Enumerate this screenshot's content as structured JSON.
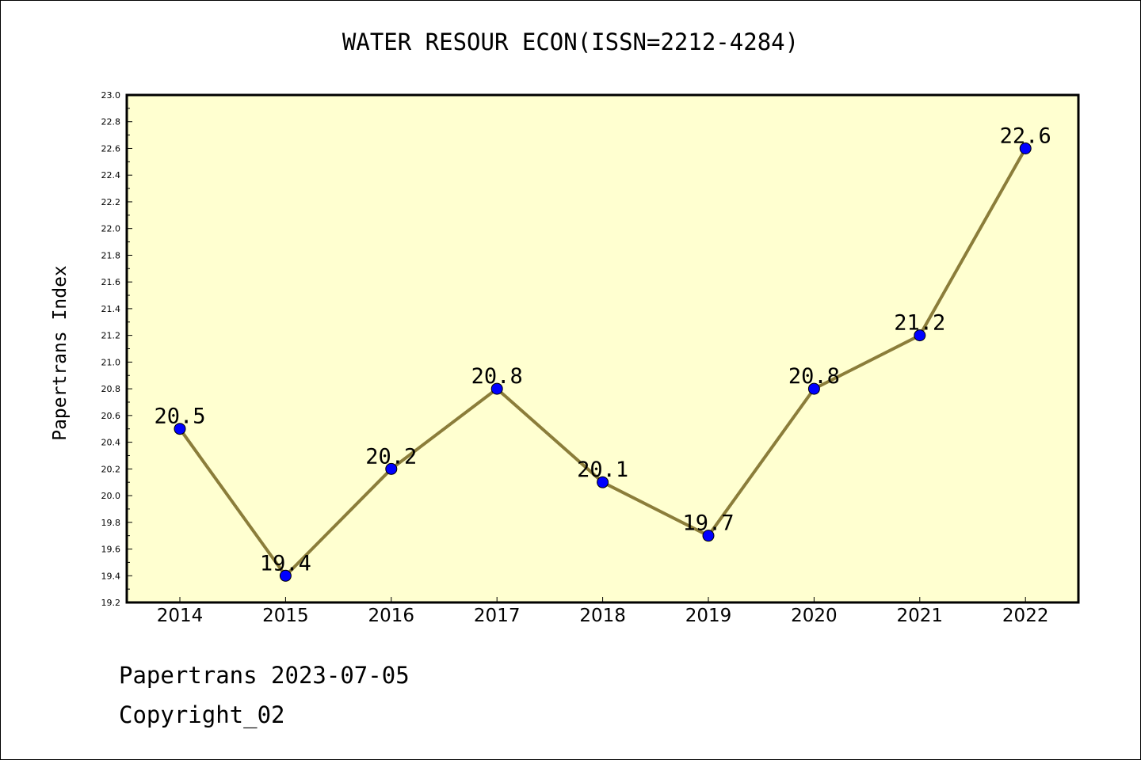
{
  "chart_data": {
    "type": "line",
    "title": "WATER RESOUR ECON(ISSN=2212-4284)",
    "xlabel": "",
    "ylabel": "Papertrans Index",
    "x": [
      "2014",
      "2015",
      "2016",
      "2017",
      "2018",
      "2019",
      "2020",
      "2021",
      "2022"
    ],
    "series": [
      {
        "values": [
          20.5,
          19.4,
          20.2,
          20.8,
          20.1,
          19.7,
          20.8,
          21.2,
          22.6
        ]
      }
    ],
    "data_labels": [
      "20.5",
      "19.4",
      "20.2",
      "20.8",
      "20.1",
      "19.7",
      "20.8",
      "21.2",
      "22.6"
    ],
    "ylim": [
      19.2,
      23.0
    ],
    "yticks": [
      "19.2",
      "19.4",
      "19.6",
      "19.8",
      "20.0",
      "20.2",
      "20.4",
      "20.6",
      "20.8",
      "21.0",
      "21.2",
      "21.4",
      "21.6",
      "21.8",
      "22.0",
      "22.2",
      "22.4",
      "22.6",
      "22.8",
      "23.0"
    ],
    "grid": false,
    "colors": {
      "plot_background": "#ffffd0",
      "line": "#8b7d3a",
      "marker": "#0000ff"
    }
  },
  "footer": {
    "date_text": "Papertrans 2023-07-05",
    "copyright_text": "Copyright_02"
  }
}
